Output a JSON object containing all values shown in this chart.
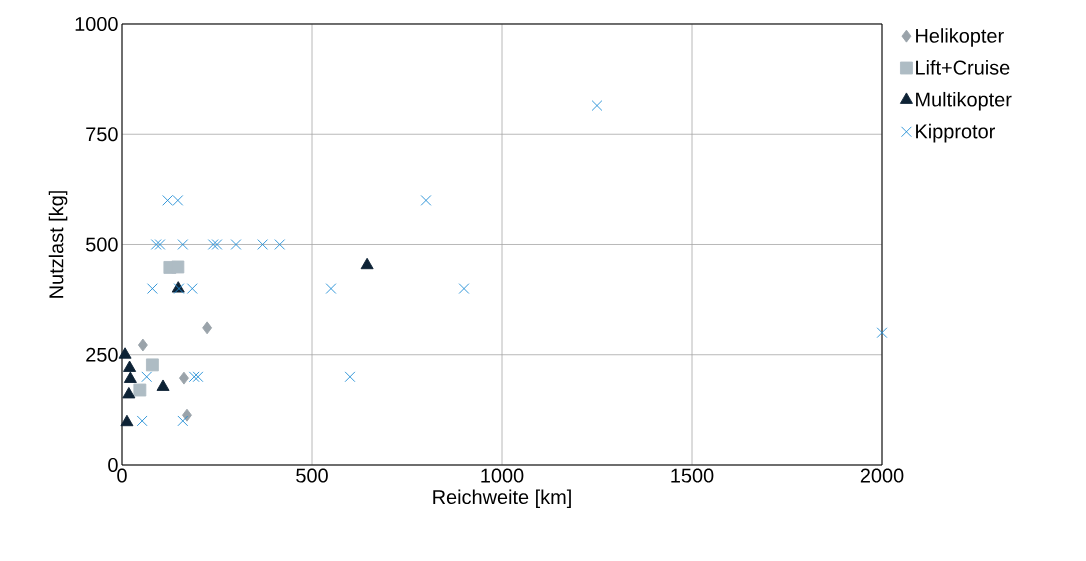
{
  "chart_data": {
    "type": "scatter",
    "xlabel": "Reichweite [km]",
    "ylabel": "Nutzlast [kg]",
    "xlim": [
      0,
      2000
    ],
    "ylim": [
      0,
      1000
    ],
    "xticks": [
      0,
      500,
      1000,
      1500,
      2000
    ],
    "yticks": [
      0,
      250,
      500,
      750,
      1000
    ],
    "grid": true,
    "legend": "right",
    "series": [
      {
        "name": "Helikopter",
        "color": "#9aa3aa",
        "marker": "diamond",
        "x": [
          55,
          224,
          163,
          171
        ],
        "values": [
          272,
          311,
          197,
          113
        ]
      },
      {
        "name": "Lift+Cruise",
        "color": "#aebcc4",
        "marker": "square",
        "x": [
          126,
          147,
          80,
          47
        ],
        "values": [
          448,
          449,
          227,
          170
        ]
      },
      {
        "name": "Multikopter",
        "color": "#0d2235",
        "marker": "triangle",
        "x": [
          148,
          8,
          20,
          22,
          18,
          108,
          13,
          645
        ],
        "values": [
          400,
          250,
          220,
          195,
          160,
          177,
          97,
          453
        ]
      },
      {
        "name": "Kipprotor",
        "color": "#1f8dd6",
        "marker": "cross",
        "x": [
          1250,
          800,
          900,
          550,
          600,
          2000,
          120,
          147,
          90,
          100,
          160,
          240,
          250,
          300,
          370,
          415,
          80,
          150,
          185,
          65,
          190,
          200,
          53,
          160
        ],
        "values": [
          815,
          600,
          400,
          400,
          200,
          300,
          600,
          600,
          500,
          500,
          500,
          500,
          500,
          500,
          500,
          500,
          400,
          400,
          400,
          200,
          200,
          200,
          100,
          100
        ]
      }
    ]
  }
}
